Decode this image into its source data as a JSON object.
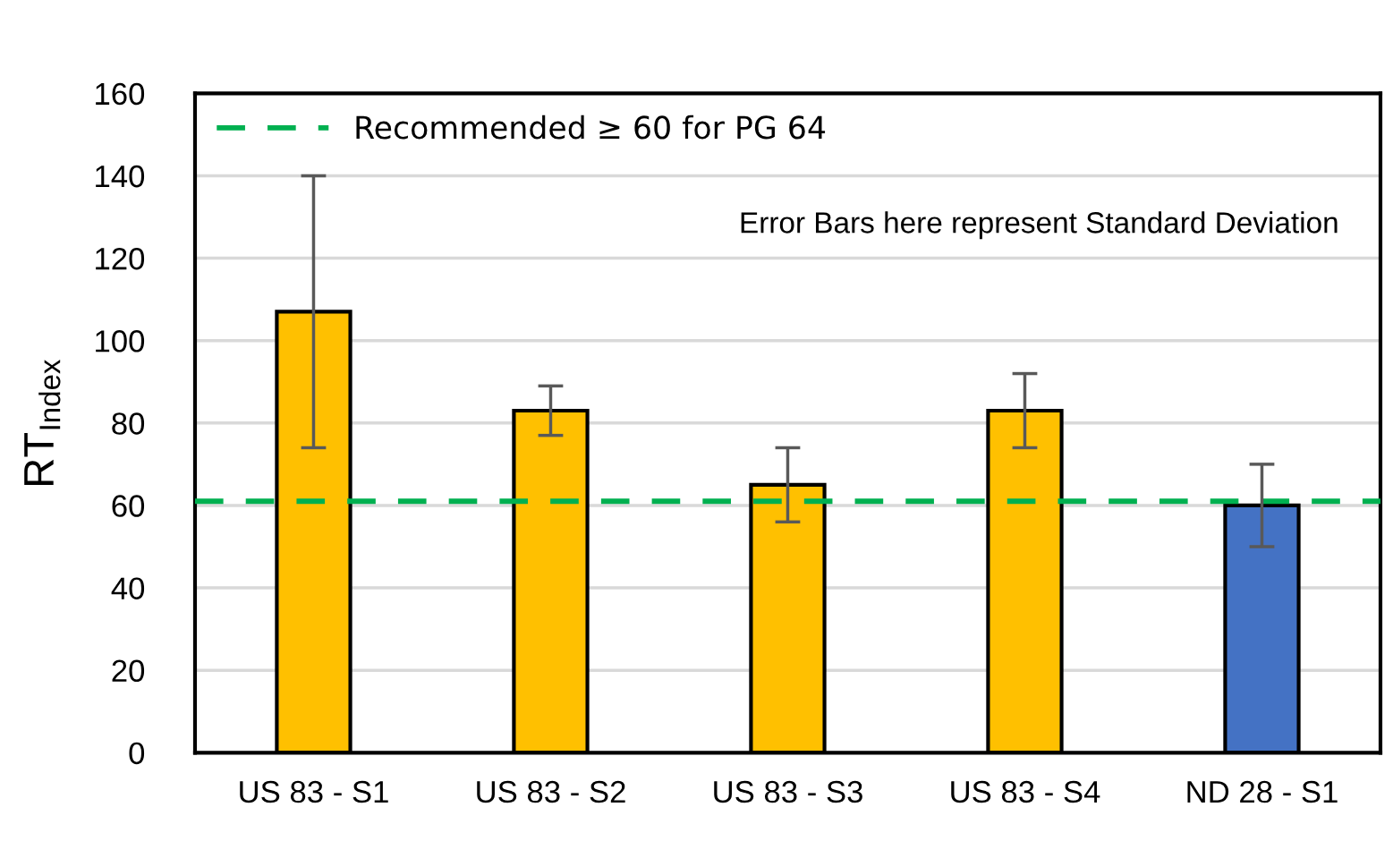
{
  "chart_data": {
    "type": "bar",
    "categories": [
      "US 83 - S1",
      "US 83 - S2",
      "US 83 - S3",
      "US 83 - S4",
      "ND 28 - S1"
    ],
    "values": [
      107,
      83,
      65,
      83,
      60
    ],
    "colors": [
      "#ffc000",
      "#ffc000",
      "#ffc000",
      "#ffc000",
      "#4472c4"
    ],
    "errors": [
      33,
      6,
      9,
      9,
      10
    ],
    "ylabel": "RT$_{Index}$",
    "ylim": [
      0,
      160
    ],
    "yticks": [
      0,
      20,
      40,
      60,
      80,
      100,
      120,
      140,
      160
    ],
    "grid": "y",
    "legend": "top left",
    "ref_lines": [
      {
        "axis": "y",
        "value": 61,
        "label": "Recommended ≥ 60 for PG 64",
        "color": "#00b050",
        "line_style": "dashed"
      }
    ],
    "annotations": [
      "Error Bars here represent Standard Deviation"
    ]
  }
}
